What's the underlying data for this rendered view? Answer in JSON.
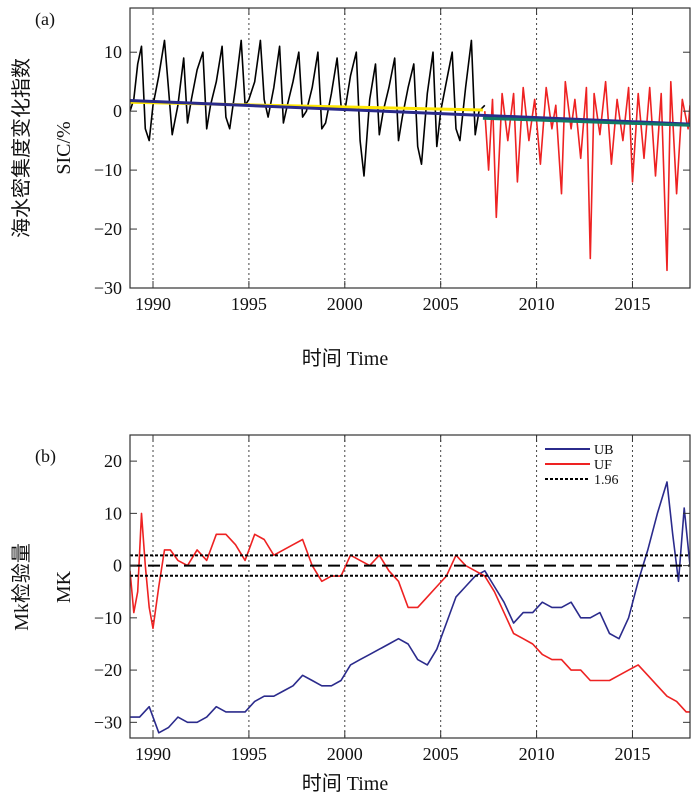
{
  "chart_data": [
    {
      "panel": "(a)",
      "type": "line",
      "xlabel": "时间 Time",
      "ylabel_cn": "海水密集度变化指数",
      "ylabel_en": "SIC/%",
      "xlim": [
        1988.8,
        2018.0
      ],
      "ylim": [
        -30,
        17.5
      ],
      "xticks": [
        1990,
        1995,
        2000,
        2005,
        2010,
        2015
      ],
      "yticks": [
        10,
        0,
        -10,
        -20,
        -30
      ],
      "grid": "vertical dotted",
      "series": [
        {
          "color": "#000000",
          "x": [
            1988.8,
            1989.0,
            1989.2,
            1989.4,
            1989.6,
            1989.8,
            1990.0,
            1990.3,
            1990.6,
            1990.8,
            1991.0,
            1991.3,
            1991.6,
            1991.8,
            1992.0,
            1992.3,
            1992.6,
            1992.8,
            1993.0,
            1993.3,
            1993.6,
            1993.8,
            1994.0,
            1994.3,
            1994.6,
            1994.8,
            1995.0,
            1995.3,
            1995.6,
            1995.8,
            1996.0,
            1996.3,
            1996.6,
            1996.8,
            1997.0,
            1997.3,
            1997.6,
            1997.8,
            1998.0,
            1998.3,
            1998.6,
            1998.8,
            1999.0,
            1999.3,
            1999.6,
            1999.8,
            2000.0,
            2000.3,
            2000.6,
            2000.8,
            2001.0,
            2001.3,
            2001.6,
            2001.8,
            2002.0,
            2002.3,
            2002.6,
            2002.8,
            2003.0,
            2003.3,
            2003.6,
            2003.8,
            2004.0,
            2004.3,
            2004.6,
            2004.8,
            2005.0,
            2005.3,
            2005.6,
            2005.8,
            2006.0,
            2006.3,
            2006.6,
            2006.8,
            2007.0,
            2007.3
          ],
          "y": [
            0,
            2,
            8,
            11,
            -3,
            -5,
            1,
            6,
            12,
            4,
            -4,
            1,
            9,
            -2,
            2,
            7,
            10,
            -3,
            1,
            5,
            11,
            -1,
            -3,
            4,
            12,
            1,
            2,
            5,
            12,
            2,
            -1,
            4,
            11,
            -2,
            1,
            5,
            10,
            -1,
            0,
            4,
            10,
            -3,
            -2,
            3,
            9,
            1,
            0,
            6,
            10,
            -5,
            -11,
            2,
            8,
            -4,
            0,
            4,
            9,
            -5,
            -1,
            4,
            8,
            -6,
            -9,
            3,
            10,
            -6,
            0,
            5,
            10,
            -3,
            -5,
            4,
            12,
            -4,
            0,
            1
          ]
        },
        {
          "color": "#ee2222",
          "x": [
            2007.3,
            2007.5,
            2007.7,
            2007.9,
            2008.2,
            2008.5,
            2008.8,
            2009.0,
            2009.3,
            2009.6,
            2009.9,
            2010.2,
            2010.5,
            2010.8,
            2011.0,
            2011.3,
            2011.5,
            2011.8,
            2012.0,
            2012.3,
            2012.6,
            2012.8,
            2013.0,
            2013.3,
            2013.6,
            2013.9,
            2014.2,
            2014.5,
            2014.8,
            2015.0,
            2015.3,
            2015.6,
            2015.9,
            2016.2,
            2016.5,
            2016.8,
            2017.0,
            2017.3,
            2017.6,
            2017.9,
            2018.0
          ],
          "y": [
            0,
            -10,
            2,
            -18,
            3,
            -5,
            3,
            -12,
            4,
            -5,
            2,
            -9,
            4,
            -3,
            1,
            -14,
            5,
            -3,
            2,
            -8,
            4,
            -25,
            3,
            -4,
            5,
            -9,
            2,
            -5,
            4,
            -12,
            3,
            -8,
            4,
            -11,
            3,
            -27,
            5,
            -14,
            2,
            -3,
            1
          ]
        },
        {
          "color": "#ffe600",
          "x": [
            1988.8,
            2007.2
          ],
          "y": [
            1.5,
            0.2
          ]
        },
        {
          "color": "#2a2a8a",
          "x": [
            1988.8,
            2018.0
          ],
          "y": [
            1.8,
            -2.2
          ]
        },
        {
          "color": "#117a65",
          "x": [
            2007.2,
            2018.0
          ],
          "y": [
            -1.2,
            -2.4
          ]
        }
      ]
    },
    {
      "panel": "(b)",
      "type": "line",
      "xlabel": "时间 Time",
      "ylabel_cn": "Mk检验量",
      "ylabel_en": "MK",
      "xlim": [
        1988.8,
        2018.0
      ],
      "ylim": [
        -33,
        25
      ],
      "xticks": [
        1990,
        1995,
        2000,
        2005,
        2010,
        2015
      ],
      "yticks": [
        20,
        10,
        0,
        -10,
        -20,
        -30
      ],
      "grid": "vertical dotted",
      "legend": "top-right",
      "threshold": 1.96,
      "series": [
        {
          "name": "UB",
          "color": "#2b2b8c",
          "x": [
            1988.8,
            1989.3,
            1989.8,
            1990.3,
            1990.8,
            1991.3,
            1991.8,
            1992.3,
            1992.8,
            1993.3,
            1993.8,
            1994.3,
            1994.8,
            1995.3,
            1995.8,
            1996.3,
            1996.8,
            1997.3,
            1997.8,
            1998.3,
            1998.8,
            1999.3,
            1999.8,
            2000.3,
            2000.8,
            2001.3,
            2001.8,
            2002.3,
            2002.8,
            2003.3,
            2003.8,
            2004.3,
            2004.8,
            2005.3,
            2005.8,
            2006.3,
            2006.8,
            2007.3,
            2007.8,
            2008.3,
            2008.8,
            2009.3,
            2009.8,
            2010.3,
            2010.8,
            2011.3,
            2011.8,
            2012.3,
            2012.8,
            2013.3,
            2013.8,
            2014.3,
            2014.8,
            2015.3,
            2015.8,
            2016.3,
            2016.8,
            2017.1,
            2017.4,
            2017.7,
            2018.0
          ],
          "y": [
            -29,
            -29,
            -27,
            -32,
            -31,
            -29,
            -30,
            -30,
            -29,
            -27,
            -28,
            -28,
            -28,
            -26,
            -25,
            -25,
            -24,
            -23,
            -21,
            -22,
            -23,
            -23,
            -22,
            -19,
            -18,
            -17,
            -16,
            -15,
            -14,
            -15,
            -18,
            -19,
            -16,
            -11,
            -6,
            -4,
            -2,
            -1,
            -4,
            -7,
            -11,
            -9,
            -9,
            -7,
            -8,
            -8,
            -7,
            -10,
            -10,
            -9,
            -13,
            -14,
            -10,
            -3,
            3,
            10,
            16,
            6,
            -3,
            11,
            0
          ]
        },
        {
          "name": "UF",
          "color": "#ee2222",
          "x": [
            1988.8,
            1989.0,
            1989.2,
            1989.4,
            1989.6,
            1989.8,
            1990.0,
            1990.3,
            1990.6,
            1990.9,
            1991.3,
            1991.8,
            1992.3,
            1992.8,
            1993.3,
            1993.8,
            1994.3,
            1994.8,
            1995.3,
            1995.8,
            1996.3,
            1996.8,
            1997.3,
            1997.8,
            1998.3,
            1998.8,
            1999.3,
            1999.8,
            2000.3,
            2000.8,
            2001.3,
            2001.8,
            2002.3,
            2002.8,
            2003.3,
            2003.8,
            2004.3,
            2004.8,
            2005.3,
            2005.8,
            2006.3,
            2006.8,
            2007.3,
            2007.8,
            2008.3,
            2008.8,
            2009.3,
            2009.8,
            2010.3,
            2010.8,
            2011.3,
            2011.8,
            2012.3,
            2012.8,
            2013.3,
            2013.8,
            2014.3,
            2014.8,
            2015.3,
            2015.8,
            2016.3,
            2016.8,
            2017.3,
            2017.8,
            2018.0
          ],
          "y": [
            -1,
            -9,
            -5,
            10,
            0,
            -8,
            -12,
            -4,
            3,
            3,
            1,
            0,
            3,
            1,
            6,
            6,
            4,
            1,
            6,
            5,
            2,
            3,
            4,
            5,
            0,
            -3,
            -2,
            -2,
            2,
            1,
            0,
            2,
            -1,
            -3,
            -8,
            -8,
            -6,
            -4,
            -2,
            2,
            0,
            -1,
            -2,
            -5,
            -9,
            -13,
            -14,
            -15,
            -17,
            -18,
            -18,
            -20,
            -20,
            -22,
            -22,
            -22,
            -21,
            -20,
            -19,
            -21,
            -23,
            -25,
            -26,
            -28,
            -28
          ]
        },
        {
          "name": "1.96",
          "color": "#000000",
          "x": [
            1988.8,
            2018.0
          ],
          "y": [
            1.96,
            1.96
          ]
        }
      ]
    }
  ]
}
